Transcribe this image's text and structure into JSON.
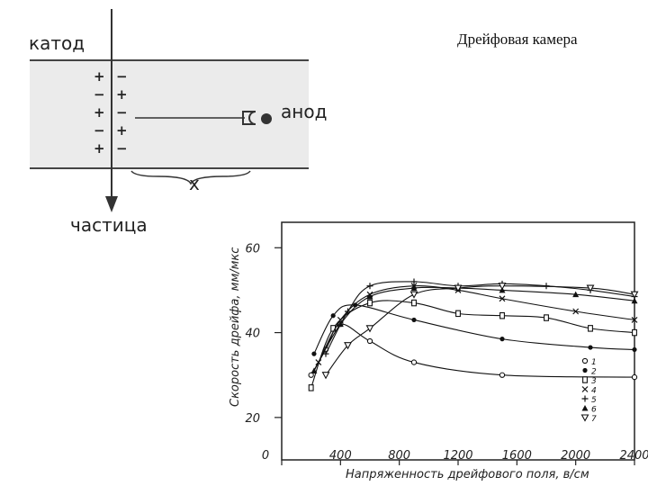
{
  "slide": {
    "title": "Дрейфовая камера"
  },
  "diagram": {
    "cathode_label": "катод",
    "anode_label": "анод",
    "x_label": "x",
    "particle_label": "частица",
    "charges_left": [
      "+",
      "−",
      "+",
      "−",
      "+"
    ],
    "charges_right": [
      "−",
      "+",
      "−",
      "+",
      "−"
    ]
  },
  "chart_data": {
    "type": "line",
    "xlabel": "Напряженность дрейфового поля, в/см",
    "ylabel": "Скорость дрейфа, мм/мкс",
    "x_ticks": [
      "0",
      "400",
      "800",
      "1200",
      "1600",
      "2000",
      "2400"
    ],
    "y_ticks": [
      "20",
      "40",
      "60"
    ],
    "xlim": [
      0,
      2400
    ],
    "ylim": [
      10,
      66
    ],
    "legend_position": "bottom-right",
    "series": [
      {
        "name": "1",
        "marker": "circle-open",
        "x": [
          200,
          300,
          400,
          600,
          900,
          1500,
          2400
        ],
        "y": [
          30,
          36,
          42,
          38,
          33,
          30,
          29.5
        ]
      },
      {
        "name": "2",
        "marker": "circle-filled",
        "x": [
          220,
          350,
          500,
          900,
          1500,
          2100,
          2400
        ],
        "y": [
          35,
          44,
          46.5,
          43,
          38.5,
          36.5,
          36
        ]
      },
      {
        "name": "3",
        "marker": "square-open",
        "x": [
          200,
          350,
          600,
          900,
          1200,
          1500,
          1800,
          2100,
          2400
        ],
        "y": [
          27,
          41,
          47,
          47,
          44.5,
          44,
          43.5,
          41,
          40
        ]
      },
      {
        "name": "4",
        "marker": "cross",
        "x": [
          250,
          400,
          600,
          900,
          1200,
          1500,
          2000,
          2400
        ],
        "y": [
          33,
          43,
          49,
          51,
          50,
          48,
          45,
          43
        ]
      },
      {
        "name": "5",
        "marker": "plus",
        "x": [
          300,
          450,
          600,
          900,
          1200,
          1500,
          1800,
          2100,
          2400
        ],
        "y": [
          35,
          45,
          51,
          52,
          51,
          51.5,
          51,
          50,
          48.5
        ]
      },
      {
        "name": "6",
        "marker": "triangle-filled",
        "x": [
          220,
          400,
          600,
          900,
          1200,
          1500,
          2000,
          2400
        ],
        "y": [
          31,
          42,
          48.5,
          50.5,
          50.5,
          50,
          49,
          47.5
        ]
      },
      {
        "name": "7",
        "marker": "triangle-open",
        "x": [
          300,
          450,
          600,
          900,
          1200,
          1500,
          2100,
          2400
        ],
        "y": [
          30,
          37,
          41,
          49,
          50.5,
          51,
          50.5,
          49
        ]
      }
    ]
  }
}
